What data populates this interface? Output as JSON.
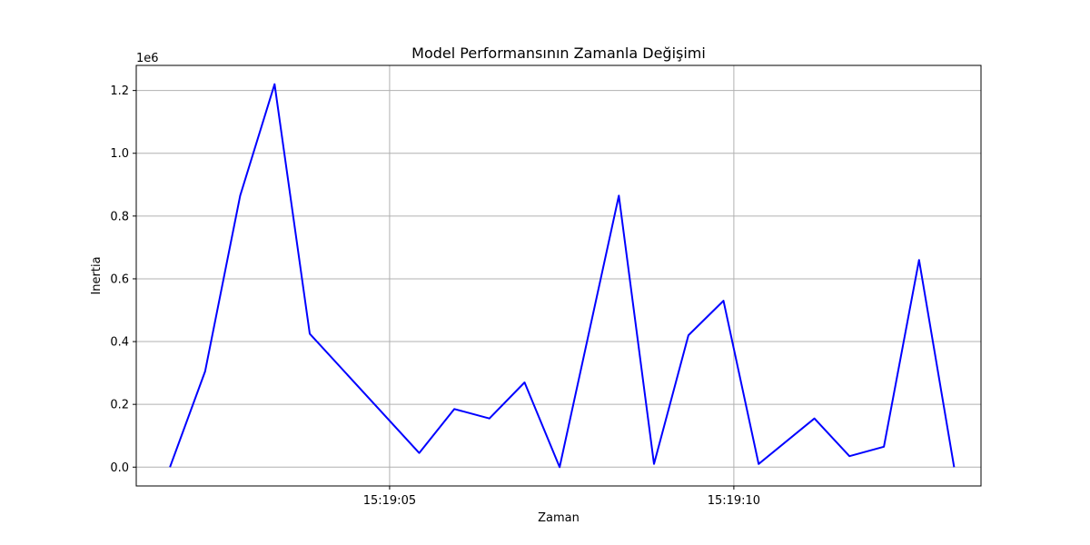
{
  "chart_data": {
    "type": "line",
    "title": "Model Performansının Zamanla Değişimi",
    "xlabel": "Zaman",
    "ylabel": "Inertia",
    "y_offset_label": "1e6",
    "xlim": [
      1.32,
      13.59
    ],
    "ylim": [
      -60000,
      1280000
    ],
    "x_ticks": [
      {
        "x": 5,
        "label": "15:19:05"
      },
      {
        "x": 10,
        "label": "15:19:10"
      }
    ],
    "y_ticks": [
      {
        "y": 0,
        "label": "0.0"
      },
      {
        "y": 200000,
        "label": "0.2"
      },
      {
        "y": 400000,
        "label": "0.4"
      },
      {
        "y": 600000,
        "label": "0.6"
      },
      {
        "y": 800000,
        "label": "0.8"
      },
      {
        "y": 1000000,
        "label": "1.0"
      },
      {
        "y": 1200000,
        "label": "1.2"
      }
    ],
    "grid": true,
    "series": [
      {
        "color": "#0000ff",
        "x": [
          1.81,
          2.32,
          2.83,
          3.33,
          3.84,
          5.43,
          5.94,
          6.45,
          6.96,
          7.47,
          8.33,
          8.84,
          9.34,
          9.85,
          10.36,
          11.17,
          11.68,
          12.18,
          12.69,
          13.2
        ],
        "y": [
          0,
          305000,
          865000,
          1220000,
          425000,
          45000,
          185000,
          155000,
          270000,
          0,
          865000,
          10000,
          420000,
          530000,
          10000,
          155000,
          35000,
          65000,
          660000,
          0
        ]
      }
    ]
  }
}
